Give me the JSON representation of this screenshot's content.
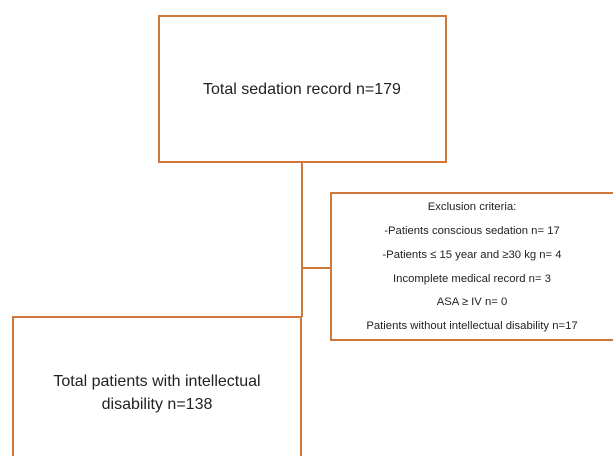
{
  "nodes": [
    {
      "label": "Total sedation record n=179"
    },
    {
      "lines": [
        "Total patients with intellectual",
        "disability n=138"
      ]
    }
  ],
  "exclusion": {
    "title": "Exclusion criteria:",
    "items": [
      "-Patients conscious sedation n= 17",
      "-Patients ≤ 15 year and ≥30 kg  n= 4",
      "Incomplete medical record n= 3",
      "ASA ≥ IV n= 0",
      "Patients without intellectual disability n=17"
    ]
  }
}
